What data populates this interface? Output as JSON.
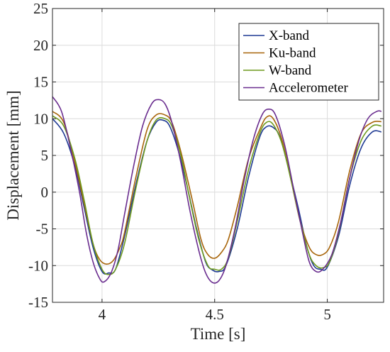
{
  "chart_data": {
    "type": "line",
    "xlabel": "Time [s]",
    "ylabel": "Displacement [mm]",
    "xlim": [
      3.78,
      5.25
    ],
    "ylim": [
      -15,
      25
    ],
    "xticks": [
      4,
      4.5,
      5
    ],
    "xtick_labels": [
      "4",
      "4.5",
      "5"
    ],
    "yticks": [
      -15,
      -10,
      -5,
      0,
      5,
      10,
      15,
      20,
      25
    ],
    "ytick_labels": [
      "-15",
      "-10",
      "-5",
      "0",
      "5",
      "10",
      "15",
      "20",
      "25"
    ],
    "grid": true,
    "legend_position": "top-right",
    "series": [
      {
        "name": "X-band",
        "color": "#1f3a93",
        "x": [
          3.78,
          3.83,
          3.88,
          3.92,
          3.96,
          4.0,
          4.03,
          4.06,
          4.1,
          4.15,
          4.2,
          4.24,
          4.27,
          4.3,
          4.34,
          4.38,
          4.42,
          4.46,
          4.49,
          4.52,
          4.55,
          4.6,
          4.65,
          4.7,
          4.73,
          4.76,
          4.79,
          4.83,
          4.87,
          4.91,
          4.94,
          4.97,
          5.0,
          5.05,
          5.1,
          5.15,
          5.2,
          5.24
        ],
        "y": [
          10.0,
          8.0,
          3.5,
          -2.0,
          -7.5,
          -10.8,
          -11.0,
          -10.5,
          -6.0,
          1.0,
          7.0,
          9.5,
          9.8,
          9.0,
          5.5,
          0.5,
          -5.0,
          -9.5,
          -10.6,
          -10.8,
          -10.0,
          -5.0,
          2.0,
          7.5,
          8.9,
          8.8,
          7.5,
          3.0,
          -2.0,
          -7.5,
          -10.0,
          -10.5,
          -10.2,
          -6.0,
          1.0,
          6.0,
          8.2,
          8.2
        ]
      },
      {
        "name": "Ku-band",
        "color": "#a8650a",
        "x": [
          3.78,
          3.83,
          3.88,
          3.92,
          3.96,
          3.99,
          4.02,
          4.05,
          4.08,
          4.1,
          4.15,
          4.2,
          4.24,
          4.28,
          4.31,
          4.35,
          4.4,
          4.44,
          4.47,
          4.5,
          4.53,
          4.56,
          4.6,
          4.65,
          4.7,
          4.73,
          4.76,
          4.8,
          4.84,
          4.88,
          4.92,
          4.95,
          4.98,
          5.01,
          5.05,
          5.1,
          5.15,
          5.2,
          5.24
        ],
        "y": [
          11.0,
          9.5,
          4.0,
          -1.5,
          -7.0,
          -9.2,
          -9.8,
          -9.3,
          -7.5,
          -5.5,
          2.0,
          8.5,
          10.5,
          10.5,
          9.5,
          5.5,
          -1.0,
          -6.5,
          -8.5,
          -9.0,
          -8.2,
          -6.5,
          -2.0,
          4.5,
          8.5,
          10.2,
          10.0,
          7.0,
          1.5,
          -4.0,
          -7.5,
          -8.5,
          -8.5,
          -7.5,
          -4.0,
          3.0,
          8.0,
          9.5,
          9.6
        ]
      },
      {
        "name": "W-band",
        "color": "#6e9a1f",
        "x": [
          3.78,
          3.83,
          3.88,
          3.92,
          3.96,
          4.0,
          4.03,
          4.06,
          4.1,
          4.15,
          4.2,
          4.24,
          4.28,
          4.31,
          4.35,
          4.39,
          4.43,
          4.47,
          4.5,
          4.53,
          4.56,
          4.6,
          4.65,
          4.7,
          4.73,
          4.76,
          4.8,
          4.84,
          4.88,
          4.92,
          4.95,
          4.98,
          5.01,
          5.05,
          5.1,
          5.15,
          5.2,
          5.24
        ],
        "y": [
          10.4,
          9.0,
          4.5,
          -1.0,
          -7.0,
          -10.5,
          -11.2,
          -10.5,
          -7.0,
          0.5,
          7.0,
          9.8,
          10.0,
          9.0,
          5.0,
          -1.0,
          -6.5,
          -10.0,
          -10.5,
          -10.5,
          -9.0,
          -4.0,
          3.0,
          8.0,
          9.5,
          9.2,
          6.5,
          1.5,
          -4.0,
          -8.5,
          -10.0,
          -10.3,
          -9.5,
          -5.5,
          2.0,
          7.0,
          9.0,
          9.0
        ]
      },
      {
        "name": "Accelerometer",
        "color": "#6a2d8f",
        "x": [
          3.78,
          3.82,
          3.86,
          3.9,
          3.93,
          3.96,
          3.99,
          4.01,
          4.04,
          4.07,
          4.1,
          4.14,
          4.18,
          4.22,
          4.25,
          4.28,
          4.31,
          4.35,
          4.39,
          4.43,
          4.46,
          4.49,
          4.52,
          4.55,
          4.59,
          4.63,
          4.67,
          4.71,
          4.74,
          4.77,
          4.81,
          4.85,
          4.89,
          4.92,
          4.95,
          4.98,
          5.02,
          5.06,
          5.1,
          5.14,
          5.18,
          5.22,
          5.24
        ],
        "y": [
          13.0,
          11.0,
          6.0,
          0.0,
          -5.5,
          -9.5,
          -11.8,
          -12.2,
          -11.0,
          -8.0,
          -3.0,
          3.5,
          9.0,
          12.0,
          12.6,
          12.0,
          9.5,
          4.0,
          -2.5,
          -8.0,
          -11.0,
          -12.3,
          -12.0,
          -10.0,
          -5.0,
          1.5,
          7.0,
          10.5,
          11.3,
          10.5,
          6.5,
          0.5,
          -5.5,
          -9.5,
          -10.8,
          -10.5,
          -8.5,
          -4.0,
          2.0,
          7.0,
          10.0,
          11.0,
          11.0
        ]
      }
    ]
  }
}
